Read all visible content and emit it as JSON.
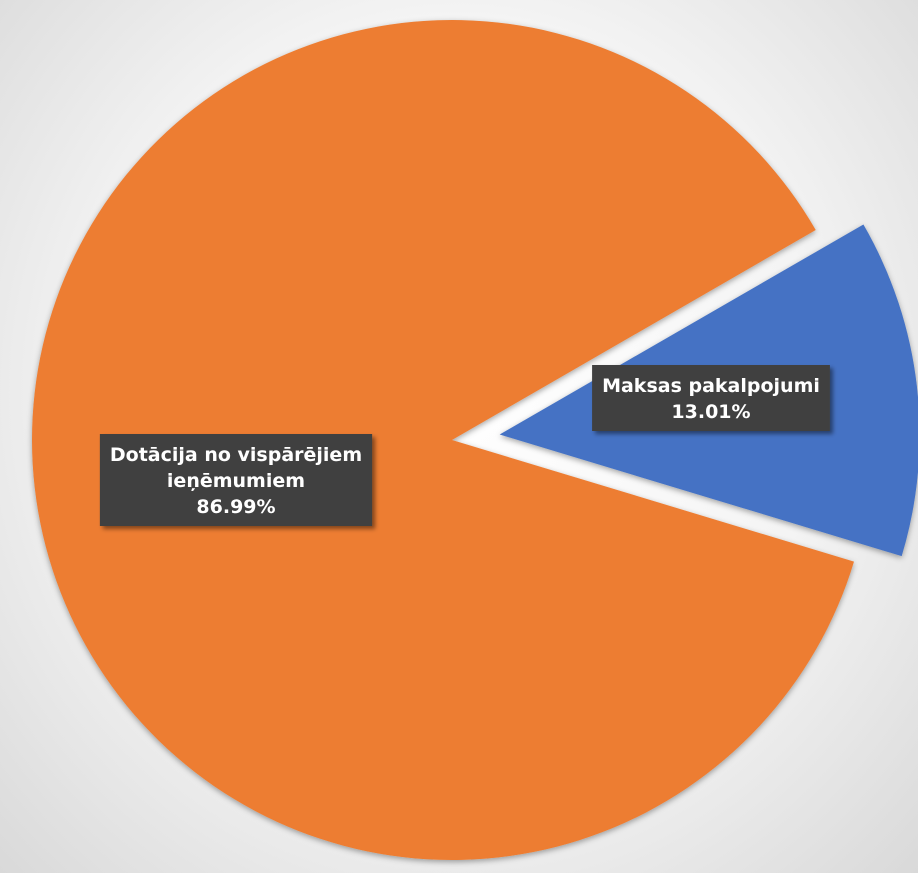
{
  "chart_data": {
    "type": "pie",
    "slices": [
      {
        "name": "Maksas pakalpojumi",
        "value": 13.01,
        "label_lines": [
          "Maksas pakalpojumi",
          "13.01%"
        ],
        "color": "#4472C4",
        "exploded": true
      },
      {
        "name": "Dotācija no vispārējiem ieņēmumiem",
        "value": 86.99,
        "label_lines": [
          "Dotācija no vispārējiem",
          "ieņēmumiem",
          "86.99%"
        ],
        "color": "#ED7D31",
        "exploded": false
      }
    ],
    "data_label_style": {
      "background": "#404040",
      "text_color": "#FFFFFF"
    },
    "legend": "none",
    "title": ""
  }
}
